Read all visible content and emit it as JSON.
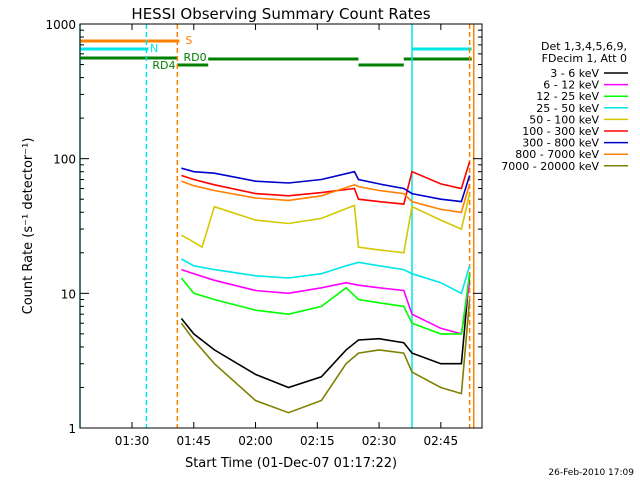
{
  "chart_data": {
    "type": "line",
    "title": "HESSI Observing Summary Count Rates",
    "xlabel": "Start Time (01-Dec-07 01:17:22)",
    "ylabel": "Count Rate (s⁻¹ detector⁻¹)",
    "y_scale": "log",
    "ylim": [
      1,
      1000
    ],
    "xlim": [
      "01:17:22",
      "02:55:00"
    ],
    "x_ticks": [
      "01:30",
      "01:45",
      "02:00",
      "02:15",
      "02:30",
      "02:45"
    ],
    "y_ticks": [
      "1",
      "10",
      "100",
      "1000"
    ],
    "legend_header": [
      "Det 1,3,4,5,6,9,",
      "FDecim 1, Att 0"
    ],
    "footer_date": "26-Feb-2010 17:09",
    "flags": {
      "saa": {
        "label": "S",
        "color": "#ff8000",
        "intervals": [
          [
            "01:17:22",
            "01:41:30"
          ]
        ]
      },
      "night": {
        "label": "N",
        "color": "#00e6e6",
        "intervals": [
          [
            "01:17:22",
            "01:34:00"
          ],
          [
            "02:38:00",
            "02:52:30"
          ]
        ]
      },
      "decim": {
        "labels": [
          "RD4",
          "RD0"
        ],
        "color": "#007f00",
        "intervals": [
          [
            "01:17:22",
            "01:41:00"
          ],
          [
            "01:41:00",
            "01:48:30"
          ],
          [
            "01:48:30",
            "02:25:00"
          ],
          [
            "02:25:00",
            "02:36:00"
          ],
          [
            "02:36:00",
            "02:52:30"
          ]
        ]
      }
    },
    "vertical_markers": [
      {
        "time": "01:17:22",
        "color": "#00e6e6",
        "style": "solid"
      },
      {
        "time": "01:33:30",
        "color": "#00e6e6",
        "style": "dashed"
      },
      {
        "time": "01:41:00",
        "color": "#ff8000",
        "style": "dashed"
      },
      {
        "time": "02:38:00",
        "color": "#00e6e6",
        "style": "solid"
      },
      {
        "time": "02:52:00",
        "color": "#ff8000",
        "style": "dashed"
      },
      {
        "time": "02:53:00",
        "color": "#ff8000",
        "style": "solid"
      }
    ],
    "series": [
      {
        "name": "3 - 6 keV",
        "color": "#000000",
        "x": [
          "01:42",
          "01:45",
          "01:50",
          "02:00",
          "02:08",
          "02:16",
          "02:22",
          "02:25",
          "02:30",
          "02:36",
          "02:38",
          "02:45",
          "02:50",
          "02:52"
        ],
        "values": [
          6.5,
          5,
          3.8,
          2.5,
          2,
          2.4,
          3.8,
          4.5,
          4.6,
          4.3,
          3.6,
          3,
          3,
          14
        ]
      },
      {
        "name": "6 - 12 keV",
        "color": "#ff00ff",
        "x": [
          "01:42",
          "01:45",
          "01:50",
          "02:00",
          "02:08",
          "02:16",
          "02:22",
          "02:25",
          "02:30",
          "02:36",
          "02:38",
          "02:45",
          "02:50",
          "02:52"
        ],
        "values": [
          15,
          14,
          12.5,
          10.5,
          10,
          11,
          12,
          11.5,
          11,
          10.5,
          7,
          5.5,
          5,
          12
        ]
      },
      {
        "name": "12 - 25 keV",
        "color": "#00ff00",
        "x": [
          "01:42",
          "01:45",
          "01:50",
          "02:00",
          "02:08",
          "02:16",
          "02:22",
          "02:25",
          "02:30",
          "02:36",
          "02:38",
          "02:45",
          "02:50",
          "02:52"
        ],
        "values": [
          13,
          10,
          9,
          7.5,
          7,
          8,
          11,
          9,
          8.5,
          8,
          6,
          5,
          5,
          14
        ]
      },
      {
        "name": "25 - 50 keV",
        "color": "#00e6e6",
        "x": [
          "01:42",
          "01:45",
          "01:50",
          "02:00",
          "02:08",
          "02:16",
          "02:22",
          "02:25",
          "02:30",
          "02:36",
          "02:38",
          "02:45",
          "02:50",
          "02:52"
        ],
        "values": [
          18,
          16,
          15,
          13.5,
          13,
          14,
          16,
          17,
          16,
          15,
          14,
          12,
          10,
          16
        ]
      },
      {
        "name": "50 - 100 keV",
        "color": "#d4c800",
        "x": [
          "01:42",
          "01:45",
          "01:47",
          "01:50",
          "02:00",
          "02:08",
          "02:16",
          "02:24",
          "02:25",
          "02:30",
          "02:36",
          "02:38",
          "02:45",
          "02:50",
          "02:52"
        ],
        "values": [
          27,
          24,
          22,
          44,
          35,
          33,
          36,
          45,
          22,
          21,
          20,
          44,
          35,
          30,
          55
        ]
      },
      {
        "name": "100 - 300 keV",
        "color": "#ff0000",
        "x": [
          "01:42",
          "01:45",
          "01:50",
          "02:00",
          "02:08",
          "02:16",
          "02:24",
          "02:25",
          "02:30",
          "02:36",
          "02:38",
          "02:45",
          "02:50",
          "02:52"
        ],
        "values": [
          75,
          70,
          64,
          55,
          53,
          56,
          60,
          50,
          48,
          46,
          80,
          65,
          60,
          95
        ]
      },
      {
        "name": "300 - 800 keV",
        "color": "#0000cc",
        "x": [
          "01:42",
          "01:45",
          "01:50",
          "02:00",
          "02:08",
          "02:16",
          "02:24",
          "02:25",
          "02:30",
          "02:36",
          "02:38",
          "02:45",
          "02:50",
          "02:52"
        ],
        "values": [
          85,
          80,
          78,
          68,
          66,
          70,
          80,
          70,
          65,
          60,
          55,
          50,
          48,
          75
        ]
      },
      {
        "name": "800 - 7000 keV",
        "color": "#ff8000",
        "x": [
          "01:42",
          "01:45",
          "01:50",
          "02:00",
          "02:08",
          "02:16",
          "02:24",
          "02:25",
          "02:30",
          "02:36",
          "02:38",
          "02:45",
          "02:50",
          "02:52"
        ],
        "values": [
          68,
          63,
          58,
          51,
          49,
          53,
          64,
          62,
          58,
          55,
          48,
          42,
          40,
          65
        ]
      },
      {
        "name": "7000 - 20000 keV",
        "color": "#808000",
        "x": [
          "01:42",
          "01:45",
          "01:50",
          "02:00",
          "02:08",
          "02:16",
          "02:22",
          "02:25",
          "02:30",
          "02:36",
          "02:38",
          "02:45",
          "02:50",
          "02:52"
        ],
        "values": [
          6,
          4.5,
          3,
          1.6,
          1.3,
          1.6,
          3,
          3.6,
          3.8,
          3.6,
          2.6,
          2,
          1.8,
          9
        ]
      }
    ]
  }
}
